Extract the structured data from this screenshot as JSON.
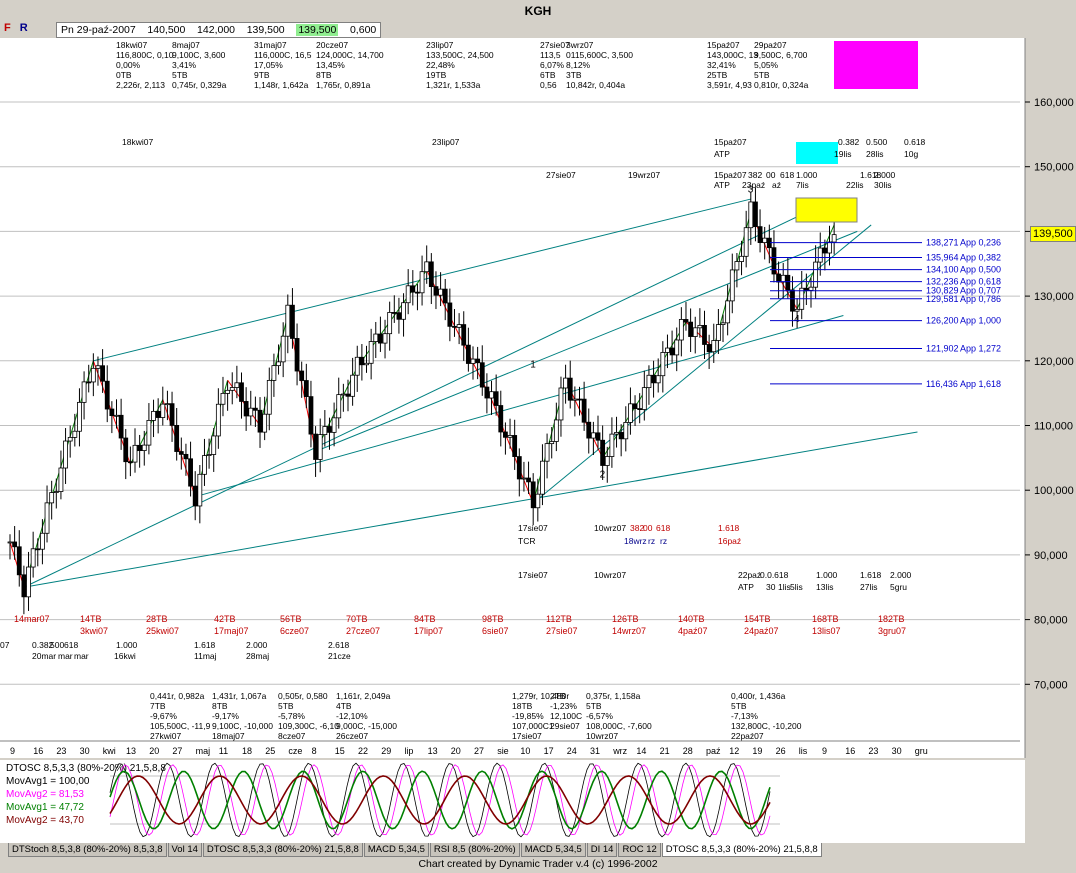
{
  "window": {
    "title": "KGH"
  },
  "toolbar": {
    "f_label": "F",
    "r_label": "R"
  },
  "quote": {
    "date": "Pn 29-paź-2007",
    "open": "140,500",
    "high": "142,000",
    "low": "139,500",
    "close": "139,500",
    "change": "0,600"
  },
  "last_price_badge": "139,500",
  "chart_data": {
    "type": "candlestick",
    "y_axis_labels": [
      "160,000",
      "150,000",
      "140,000",
      "130,000",
      "120,000",
      "110,000",
      "100,000",
      "90,000",
      "80,000",
      "70,000"
    ],
    "ylim": [
      68,
      163
    ],
    "month_axis_labels": [
      "9",
      "16",
      "23",
      "30",
      "kwi",
      "13",
      "20",
      "27",
      "maj",
      "11",
      "18",
      "25",
      "cze",
      "8",
      "15",
      "22",
      "29",
      "lip",
      "13",
      "20",
      "27",
      "sie",
      "10",
      "17",
      "24",
      "31",
      "wrz",
      "14",
      "21",
      "28",
      "paź",
      "12",
      "19",
      "26",
      "lis",
      "9",
      "16",
      "23",
      "30",
      "gru"
    ],
    "bar_count_labels": [
      {
        "n": "14mar07",
        "d": ""
      },
      {
        "n": "14TB",
        "d": "3kwi07"
      },
      {
        "n": "28TB",
        "d": "25kwi07"
      },
      {
        "n": "42TB",
        "d": "17maj07"
      },
      {
        "n": "56TB",
        "d": "6cze07"
      },
      {
        "n": "70TB",
        "d": "27cze07"
      },
      {
        "n": "84TB",
        "d": "17lip07"
      },
      {
        "n": "98TB",
        "d": "6sie07"
      },
      {
        "n": "112TB",
        "d": "27sie07"
      },
      {
        "n": "126TB",
        "d": "14wrz07"
      },
      {
        "n": "140TB",
        "d": "4paź07"
      },
      {
        "n": "154TB",
        "d": "24paź07"
      },
      {
        "n": "168TB",
        "d": "13lis07"
      },
      {
        "n": "182TB",
        "d": "3gru07"
      }
    ],
    "fib_retracements": [
      {
        "price": "138,271",
        "label": "App 0,236"
      },
      {
        "price": "135,964",
        "label": "App 0,382"
      },
      {
        "price": "134,100",
        "label": "App 0,500"
      },
      {
        "price": "132,236",
        "label": "App 0,618"
      },
      {
        "price": "130,829",
        "label": "App 0,707"
      },
      {
        "price": "129,581",
        "label": "App 0,786"
      },
      {
        "price": "126,200",
        "label": "App 1,000"
      },
      {
        "price": "121,902",
        "label": "App 1,272"
      },
      {
        "price": "116,436",
        "label": "App 1,618"
      }
    ],
    "wave_labels": [
      "1",
      "2",
      "3",
      "4"
    ],
    "top_swing_annotations": [
      {
        "lines": [
          "18kwi07",
          "116,800C, 0,10",
          "0,00%",
          "0TB",
          "2,226r, 2,113"
        ]
      },
      {
        "lines": [
          "8maj07",
          "9,100C, 3,600",
          "3,41%",
          "5TB",
          "0,745r, 0,329a"
        ]
      },
      {
        "lines": [
          "31maj07",
          "116,000C, 16,5",
          "17,05%",
          "9TB",
          "1,148r, 1,642a"
        ]
      },
      {
        "lines": [
          "20cze07",
          "124,000C, 14,700",
          "13,45%",
          "8TB",
          "1,765r, 0,891a"
        ]
      },
      {
        "lines": [
          "23lip07",
          "133,500C, 24,500",
          "22,48%",
          "19TB",
          "1,321r, 1,533a"
        ]
      },
      {
        "lines": [
          "27sie07",
          "113,5",
          "6,07%",
          "6TB",
          "0,56"
        ]
      },
      {
        "lines": [
          "3wrz07",
          "0115,600C, 3,500",
          "8,12%",
          "3TB",
          "10,842r, 0,404a"
        ]
      },
      {
        "lines": [
          "15paź07",
          "143,000C, 13",
          "32,41%",
          "25TB",
          "3,591r, 4,93"
        ]
      },
      {
        "lines": [
          "29paź07",
          "9,500C, 6,700",
          "5,05%",
          "5TB",
          "0,810r, 0,324a"
        ]
      }
    ],
    "bottom_swing_annotations": [
      {
        "lines": [
          "0,441r, 0,982a",
          "7TB",
          "-9,67%",
          "105,500C, -11,9",
          "27kwi07"
        ]
      },
      {
        "lines": [
          "1,431r, 1,067a",
          "8TB",
          "-9,17%",
          "9,100C, -10,000",
          "18maj07"
        ]
      },
      {
        "lines": [
          "0,505r, 0,580",
          "5TB",
          "-5,78%",
          "109,300C, -6,10",
          "8cze07"
        ]
      },
      {
        "lines": [
          "1,161r, 2,049a",
          "4TB",
          "-12,10%",
          "9,000C, -15,000",
          "26cze07"
        ]
      },
      {
        "lines": [
          "1,279r, 10,480r",
          "18TB",
          "-19,85%",
          "107,000C1",
          "17sie07"
        ]
      },
      {
        "lines": [
          "2TB",
          "-1,23%",
          "12,100C",
          "29sie07"
        ]
      },
      {
        "lines": [
          "0,375r, 1,158a",
          "5TB",
          "-6,57%",
          "108,000C, -7,600",
          "10wrz07"
        ]
      },
      {
        "lines": [
          "0,400r, 1,436a",
          "5TB",
          "-7,13%",
          "132,800C, -10,200",
          "22paź07"
        ]
      }
    ],
    "time_cycle_rows": {
      "row1_dates": [
        "18kwi07",
        "23lip07",
        "15paź07"
      ],
      "row1_ratios": [
        "0.382",
        "0.500",
        "0.618"
      ],
      "row1_dates2": [
        "19lis",
        "28lis",
        "10g"
      ],
      "atp": "ATP",
      "row2": [
        "27sie07",
        "19wrz07",
        "15paź07",
        "382",
        "00",
        "618",
        "1.000",
        "1.618",
        "2.000"
      ],
      "row2_dates": [
        "ATP",
        "23paź",
        "aź",
        "7lis",
        "22lis",
        "30lis"
      ],
      "tcr_dates": [
        "17sie07",
        "10wrz07",
        "382",
        "00",
        "618",
        "1.618"
      ],
      "tcr": "TCR",
      "tcr_dates2": [
        "18wrz",
        "rz",
        "rz",
        "16paź"
      ],
      "row3": [
        "17sie07",
        "10wrz07",
        "22paź",
        "0.0.618",
        "1.000",
        "1.618",
        "2.000"
      ],
      "row3_dates": [
        "ATP",
        "30",
        "1lis",
        "5lis",
        "13lis",
        "27lis",
        "5gru"
      ],
      "lower_ratios": [
        "0.382",
        "500",
        "618",
        "1.000",
        "1.618",
        "2.000",
        "2.618"
      ],
      "lower_dates": [
        "20mar",
        "mar",
        "mar",
        "16kwi",
        "11maj",
        "28maj",
        "21cze"
      ],
      "seven": "07"
    },
    "indicator": {
      "title": "DTOSC 8,5,3,3 (80%-20%) 21,5,8,8",
      "lines": [
        {
          "name": "MovAvg1",
          "value": "100,00",
          "color": "#000000"
        },
        {
          "name": "MovAvg2",
          "value": "81,53",
          "color": "#ff00ff"
        },
        {
          "name": "MovAvg1",
          "value": "47,72",
          "color": "#008000"
        },
        {
          "name": "MovAvg2",
          "value": "43,70",
          "color": "#800000"
        }
      ]
    }
  },
  "tabs": [
    "DTStoch 8,5,3,8 (80%-20%) 8,5,3,8",
    "Vol 14",
    "DTOSC 8,5,3,3 (80%-20%) 21,5,8,8",
    "MACD 5,34,5",
    "RSI 8,5 (80%-20%)",
    "MACD 5,34,5",
    "DI 14",
    "ROC 12",
    "DTOSC 8,5,3,3 (80%-20%) 21,5,8,8"
  ],
  "footer": "Chart created by Dynamic Trader v.4  (c) 1996-2002",
  "colors": {
    "bg": "#ffffff",
    "up": "#ffffff",
    "down": "#000000",
    "channel": "#008080",
    "fib": "#0000cc",
    "swing_up": "#008000",
    "swing_down": "#ff0000",
    "accent_magenta": "#ff00ff",
    "accent_cyan": "#00ffff",
    "accent_yellow": "#ffff00"
  }
}
